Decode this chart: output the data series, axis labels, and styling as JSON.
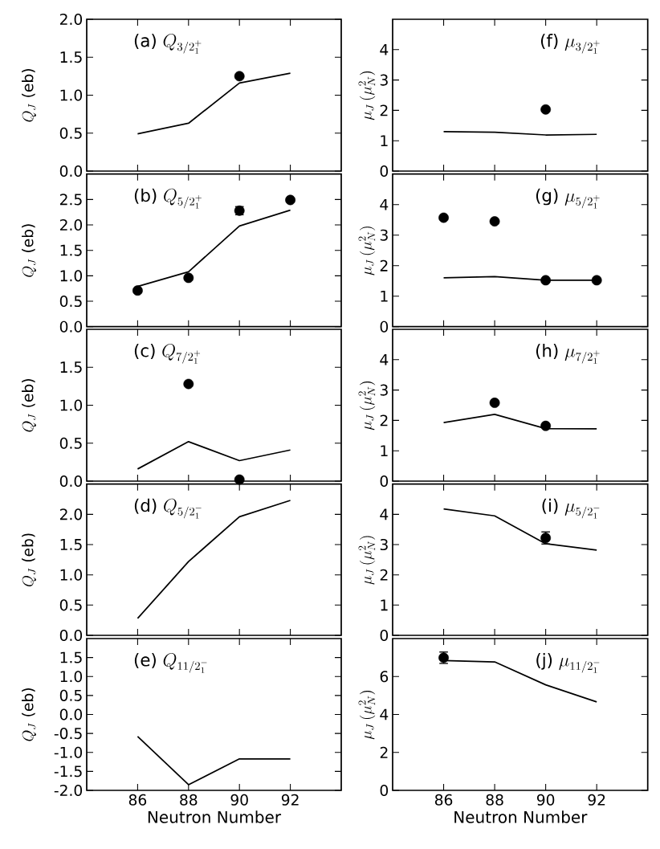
{
  "chart_data": [
    {
      "type": "line",
      "title": "\\textrm{(a)}\\ Q_{3/2_1^+}",
      "ylabel": "Q_J\\ \\textrm{(eb)}",
      "xlim": [
        84,
        94
      ],
      "xticks": [
        86,
        88,
        90,
        92
      ],
      "ylim": [
        0,
        2
      ],
      "yticks": [
        {
          "value": 0,
          "label": "0.0"
        },
        0.5,
        {
          "value": 1,
          "label": "1.0"
        },
        1.5,
        {
          "value": 2,
          "label": "2.0"
        }
      ],
      "tick_labels": "y",
      "series": [
        {
          "color": "#000000",
          "x": [
            86,
            88,
            90,
            92
          ],
          "values": [
            0.49,
            0.63,
            1.16,
            1.29
          ]
        },
        {
          "type": "scatter",
          "marker": "circle",
          "color": "#000000",
          "x": [
            90
          ],
          "values": [
            1.25
          ]
        }
      ]
    },
    {
      "type": "line",
      "title": "\\textrm{(b)}\\ Q_{5/2_1^+}",
      "ylabel": "Q_J\\ \\textrm{(eb)}",
      "xlim": [
        84,
        94
      ],
      "xticks": [
        86,
        88,
        90,
        92
      ],
      "ylim": [
        0,
        3
      ],
      "yticks": [
        {
          "value": 0,
          "label": "0.0"
        },
        0.5,
        {
          "value": 1,
          "label": "1.0"
        },
        1.5,
        {
          "value": 2,
          "label": "2.0"
        },
        2.5
      ],
      "tick_labels": "y",
      "series": [
        {
          "color": "#000000",
          "x": [
            86,
            88,
            90,
            92
          ],
          "values": [
            0.79,
            1.08,
            1.98,
            2.29
          ]
        },
        {
          "type": "scatter",
          "marker": "circle",
          "color": "#000000",
          "x": [
            86,
            88,
            90,
            92
          ],
          "values": [
            0.71,
            0.96,
            2.28,
            2.49
          ],
          "errors": [
            null,
            null,
            0.08,
            null
          ]
        }
      ]
    },
    {
      "type": "line",
      "title": "\\textrm{(c)}\\ Q_{7/2_1^+}",
      "ylabel": "Q_J\\ \\textrm{(eb)}",
      "xlim": [
        84,
        94
      ],
      "xticks": [
        86,
        88,
        90,
        92
      ],
      "ylim": [
        0,
        2
      ],
      "yticks": [
        {
          "value": 0,
          "label": "0.0"
        },
        0.5,
        {
          "value": 1,
          "label": "1.0"
        },
        1.5
      ],
      "tick_labels": "y",
      "series": [
        {
          "color": "#000000",
          "x": [
            86,
            88,
            90,
            92
          ],
          "values": [
            0.16,
            0.52,
            0.27,
            0.41
          ]
        },
        {
          "type": "scatter",
          "marker": "circle",
          "color": "#000000",
          "x": [
            88,
            90
          ],
          "values": [
            1.28,
            0.02
          ]
        }
      ]
    },
    {
      "type": "line",
      "title": "\\textrm{(d)}\\ Q_{5/2_1^-}",
      "ylabel": "Q_J\\ \\textrm{(eb)}",
      "xlim": [
        84,
        94
      ],
      "xticks": [
        86,
        88,
        90,
        92
      ],
      "ylim": [
        0,
        2.5
      ],
      "yticks": [
        {
          "value": 0,
          "label": "0.0"
        },
        0.5,
        {
          "value": 1,
          "label": "1.0"
        },
        1.5,
        {
          "value": 2,
          "label": "2.0"
        }
      ],
      "tick_labels": "y",
      "series": [
        {
          "color": "#000000",
          "x": [
            86,
            88,
            90,
            92
          ],
          "values": [
            0.28,
            1.22,
            1.96,
            2.23
          ]
        }
      ]
    },
    {
      "type": "line",
      "title": "\\textrm{(e)}\\ Q_{11/2_1^-}",
      "ylabel": "Q_J\\ \\textrm{(eb)}",
      "xlabel": "Neutron Number",
      "xlim": [
        84,
        94
      ],
      "xticks": [
        86,
        88,
        90,
        92
      ],
      "ylim": [
        -2,
        2
      ],
      "yticks": [
        {
          "value": -2,
          "label": "-2.0"
        },
        -1.5,
        {
          "value": -1,
          "label": "-1.0"
        },
        -0.5,
        {
          "value": 0,
          "label": "0.0"
        },
        0.5,
        {
          "value": 1,
          "label": "1.0"
        },
        1.5
      ],
      "series": [
        {
          "color": "#000000",
          "x": [
            86,
            88,
            90,
            92
          ],
          "values": [
            -0.58,
            -1.85,
            -1.17,
            -1.17
          ]
        }
      ]
    },
    {
      "type": "line",
      "title": "\\textrm{(f)}\\ \\mu_{3/2_1^+}",
      "ylabel": "\\mu_J\\,(\\mu_N^2)",
      "xlim": [
        84,
        94
      ],
      "xticks": [
        86,
        88,
        90,
        92
      ],
      "ylim": [
        0,
        5
      ],
      "yticks": [
        0,
        1,
        2,
        3,
        4
      ],
      "tick_labels": "y",
      "series": [
        {
          "color": "#000000",
          "x": [
            86,
            88,
            90,
            92
          ],
          "values": [
            1.3,
            1.28,
            1.19,
            1.21
          ]
        },
        {
          "type": "scatter",
          "marker": "circle",
          "color": "#000000",
          "x": [
            90
          ],
          "values": [
            2.03
          ]
        }
      ]
    },
    {
      "type": "line",
      "title": "\\textrm{(g)}\\ \\mu_{5/2_1^+}",
      "ylabel": "\\mu_J\\,(\\mu_N^2)",
      "xlim": [
        84,
        94
      ],
      "xticks": [
        86,
        88,
        90,
        92
      ],
      "ylim": [
        0,
        5
      ],
      "yticks": [
        0,
        1,
        2,
        3,
        4
      ],
      "tick_labels": "y",
      "series": [
        {
          "color": "#000000",
          "x": [
            86,
            88,
            90,
            92
          ],
          "values": [
            1.6,
            1.64,
            1.52,
            1.52
          ]
        },
        {
          "type": "scatter",
          "marker": "circle",
          "color": "#000000",
          "x": [
            86,
            88,
            90,
            92
          ],
          "values": [
            3.57,
            3.45,
            1.52,
            1.52
          ]
        }
      ]
    },
    {
      "type": "line",
      "title": "\\textrm{(h)}\\ \\mu_{7/2_1^+}",
      "ylabel": "\\mu_J\\,(\\mu_N^2)",
      "xlim": [
        84,
        94
      ],
      "xticks": [
        86,
        88,
        90,
        92
      ],
      "ylim": [
        0,
        5
      ],
      "yticks": [
        0,
        1,
        2,
        3,
        4
      ],
      "tick_labels": "y",
      "series": [
        {
          "color": "#000000",
          "x": [
            86,
            88,
            90,
            92
          ],
          "values": [
            1.93,
            2.2,
            1.73,
            1.72
          ]
        },
        {
          "type": "scatter",
          "marker": "circle",
          "color": "#000000",
          "x": [
            88,
            90
          ],
          "values": [
            2.58,
            1.82
          ]
        }
      ]
    },
    {
      "type": "line",
      "title": "\\textrm{(i)}\\ \\mu_{5/2_1^-}",
      "ylabel": "\\mu_J\\,(\\mu_N^2)",
      "xlim": [
        84,
        94
      ],
      "xticks": [
        86,
        88,
        90,
        92
      ],
      "ylim": [
        0,
        5
      ],
      "yticks": [
        0,
        1,
        2,
        3,
        4
      ],
      "tick_labels": "y",
      "series": [
        {
          "color": "#000000",
          "x": [
            86,
            88,
            90,
            92
          ],
          "values": [
            4.18,
            3.95,
            3.03,
            2.82
          ]
        },
        {
          "type": "scatter",
          "marker": "circle",
          "color": "#000000",
          "x": [
            90
          ],
          "values": [
            3.22
          ],
          "errors": [
            0.2
          ]
        }
      ]
    },
    {
      "type": "line",
      "title": "\\textrm{(j)}\\ \\mu_{11/2_1^-}",
      "ylabel": "\\mu_J\\,(\\mu_N^2)",
      "xlabel": "Neutron Number",
      "xlim": [
        84,
        94
      ],
      "xticks": [
        86,
        88,
        90,
        92
      ],
      "ylim": [
        0,
        8
      ],
      "yticks": [
        0,
        2,
        4,
        6
      ],
      "series": [
        {
          "color": "#000000",
          "x": [
            86,
            88,
            90,
            92
          ],
          "values": [
            6.84,
            6.77,
            5.56,
            4.66
          ]
        },
        {
          "type": "scatter",
          "marker": "circle",
          "color": "#000000",
          "x": [
            86
          ],
          "values": [
            6.99
          ],
          "errors": [
            0.3
          ]
        }
      ]
    }
  ]
}
